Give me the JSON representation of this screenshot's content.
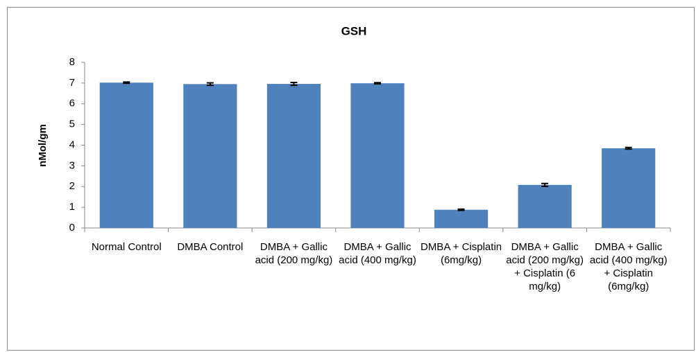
{
  "chart_data": {
    "type": "bar",
    "title": "GSH",
    "y_label": "nMol/gm",
    "categories": [
      "Normal Control",
      "DMBA Control",
      "DMBA + Gallic acid (200 mg/kg)",
      "DMBA + Gallic acid (400 mg/kg)",
      "DMBA + Cisplatin (6mg/kg)",
      "DMBA + Gallic acid (200 mg/kg) + Cisplatin (6 mg/kg)",
      "DMBA + Gallic acid (400 mg/kg) + Cisplatin (6mg/kg)"
    ],
    "values": [
      7.02,
      6.95,
      6.96,
      6.99,
      0.88,
      2.08,
      3.85
    ],
    "errors": [
      0.03,
      0.06,
      0.07,
      0.03,
      0.03,
      0.07,
      0.04
    ],
    "color": "#4f81bd",
    "ylim": [
      0,
      8
    ],
    "yticks": [
      0,
      1,
      2,
      3,
      4,
      5,
      6,
      7,
      8
    ],
    "grid": false
  }
}
